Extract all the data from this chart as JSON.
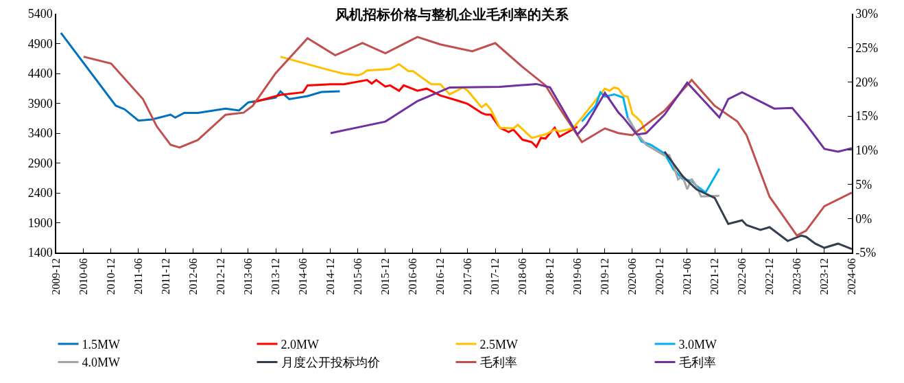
{
  "chart_data": {
    "type": "line",
    "title": "风机招标价格与整机企业毛利率的关系",
    "xlim": [
      "2009-12",
      "2024-06"
    ],
    "xticks": [
      "2009-12",
      "2010-06",
      "2010-12",
      "2011-06",
      "2011-12",
      "2012-06",
      "2012-12",
      "2013-06",
      "2013-12",
      "2014-06",
      "2014-12",
      "2015-06",
      "2015-12",
      "2016-06",
      "2016-12",
      "2017-06",
      "2017-12",
      "2018-06",
      "2018-12",
      "2019-06",
      "2019-12",
      "2020-06",
      "2020-12",
      "2021-06",
      "2021-12",
      "2022-06",
      "2022-12",
      "2023-06",
      "2023-12",
      "2024-06"
    ],
    "ylim": [
      1400,
      5400
    ],
    "yticks": [
      1400,
      1900,
      2400,
      2900,
      3400,
      3900,
      4400,
      4900,
      5400
    ],
    "y2lim": [
      -5,
      30
    ],
    "y2ticks": [
      {
        "value": -5,
        "label": "-5%"
      },
      {
        "value": 0,
        "label": "0%"
      },
      {
        "value": 5,
        "label": "5%"
      },
      {
        "value": 10,
        "label": "10%"
      },
      {
        "value": 15,
        "label": "15%"
      },
      {
        "value": 20,
        "label": "20%"
      },
      {
        "value": 25,
        "label": "25%"
      },
      {
        "value": 30,
        "label": "30%"
      }
    ],
    "grid": false,
    "legend": "bottom",
    "marker": "none",
    "line_style": "solid",
    "series": [
      {
        "name": "1.5MW",
        "color": "#0070c0",
        "x": [
          "2010-01",
          "2011-01",
          "2011-03",
          "2011-06",
          "2011-09",
          "2012-01",
          "2012-02",
          "2012-04",
          "2012-07",
          "2013-01",
          "2013-04",
          "2013-06",
          "2013-08",
          "2013-12",
          "2014-01",
          "2014-03",
          "2014-07",
          "2014-10",
          "2015-02"
        ],
        "values": [
          5080,
          3860,
          3800,
          3610,
          3630,
          3710,
          3660,
          3740,
          3740,
          3810,
          3780,
          3915,
          3940,
          3995,
          4100,
          3970,
          4020,
          4090,
          4100
        ]
      },
      {
        "name": "2.0MW",
        "color": "#ff0000",
        "x": [
          "2013-07",
          "2014-01",
          "2014-06",
          "2014-07",
          "2014-12",
          "2015-03",
          "2015-08",
          "2015-09",
          "2015-10",
          "2015-12",
          "2016-01",
          "2016-03",
          "2016-04",
          "2016-07",
          "2016-09",
          "2016-12",
          "2017-04",
          "2017-06",
          "2017-09",
          "2017-10",
          "2017-11",
          "2018-01",
          "2018-03",
          "2018-04",
          "2018-06",
          "2018-08",
          "2018-09",
          "2018-10",
          "2018-11",
          "2018-12",
          "2019-01",
          "2019-02",
          "2019-04",
          "2019-06",
          "2019-10",
          "2019-12",
          "2020-01"
        ],
        "values": [
          3915,
          4040,
          4085,
          4200,
          4220,
          4220,
          4290,
          4230,
          4290,
          4180,
          4200,
          4110,
          4200,
          4110,
          4145,
          4030,
          3940,
          3890,
          3740,
          3710,
          3710,
          3490,
          3420,
          3460,
          3290,
          3250,
          3170,
          3320,
          3310,
          3400,
          3490,
          3340,
          3420,
          3510,
          null,
          4050,
          3980
        ]
      },
      {
        "name": "2.5MW",
        "color": "#ffc000",
        "x": [
          "2014-01",
          "2014-12",
          "2015-03",
          "2015-06",
          "2015-07",
          "2015-08",
          "2016-01",
          "2016-03",
          "2016-05",
          "2016-06",
          "2016-10",
          "2016-12",
          "2017-02",
          "2017-05",
          "2017-06",
          "2017-09",
          "2017-10",
          "2017-11",
          "2018-01",
          "2018-04",
          "2018-05",
          "2018-08",
          "2018-11",
          "2019-01",
          "2019-02",
          "2019-05",
          "2019-07",
          "2019-12",
          "2020-01",
          "2020-02",
          "2020-03",
          "2020-04",
          "2020-05",
          "2020-06",
          "2020-07",
          "2020-08",
          "2020-09"
        ],
        "values": [
          4680,
          4450,
          4395,
          4370,
          4395,
          4450,
          4475,
          4555,
          4440,
          4440,
          4220,
          4220,
          4050,
          4165,
          4110,
          3835,
          3890,
          3800,
          3490,
          3480,
          3540,
          3320,
          3380,
          3460,
          3430,
          3480,
          3660,
          4145,
          4110,
          4165,
          4145,
          4030,
          4010,
          3720,
          3660,
          3580,
          3400
        ]
      },
      {
        "name": "3.0MW",
        "color": "#00b0f0",
        "x": [
          "2019-07",
          "2019-10",
          "2019-11",
          "2019-12",
          "2020-02",
          "2020-04",
          "2020-05",
          "2020-07",
          "2020-08",
          "2020-10",
          "2021-01",
          "2021-03",
          "2021-05",
          "2021-07",
          "2021-08",
          "2021-10",
          "2022-01"
        ],
        "values": [
          3595,
          3860,
          4085,
          4010,
          4050,
          3995,
          3660,
          3400,
          3260,
          3205,
          3060,
          2795,
          2635,
          2600,
          2520,
          2405,
          2805
        ]
      },
      {
        "name": "4.0MW",
        "color": "#a5a5a5",
        "x": [
          "2020-05",
          "2020-07",
          "2020-09",
          "2021-01",
          "2021-02",
          "2021-03",
          "2021-04",
          "2021-05",
          "2021-06",
          "2021-07",
          "2021-08",
          "2021-09",
          "2022-01"
        ],
        "values": [
          3660,
          3400,
          3205,
          3025,
          3035,
          2865,
          2625,
          2680,
          2460,
          2635,
          2510,
          2340,
          2350
        ]
      },
      {
        "name": "月度公开投标均价",
        "color": "#333f50",
        "x": [
          "2021-01",
          "2021-05",
          "2021-08",
          "2021-12",
          "2022-03",
          "2022-06",
          "2022-07",
          "2022-10",
          "2022-12",
          "2023-04",
          "2023-07",
          "2023-08",
          "2023-10",
          "2023-12",
          "2024-03",
          "2024-06"
        ],
        "values": [
          3090,
          2680,
          2460,
          2315,
          1880,
          1940,
          1860,
          1780,
          1825,
          1595,
          1685,
          1665,
          1550,
          1480,
          1550,
          1460
        ]
      },
      {
        "name": "毛利率",
        "color": "#c0504d",
        "axis": "y2",
        "x": [
          "2010-06",
          "2010-12",
          "2011-07",
          "2011-10",
          "2012-01",
          "2012-03",
          "2012-07",
          "2013-01",
          "2013-05",
          "2013-07",
          "2013-12",
          "2014-07",
          "2015-01",
          "2015-07",
          "2015-12",
          "2016-07",
          "2016-12",
          "2017-07",
          "2017-12",
          "2018-06",
          "2018-11",
          "2019-02",
          "2019-07",
          "2019-12",
          "2020-03",
          "2020-06",
          "2021-01",
          "2021-07",
          "2021-12",
          "2022-05",
          "2022-07",
          "2022-12",
          "2023-06",
          "2023-08",
          "2023-12",
          "2024-06"
        ],
        "values": [
          23.7,
          22.7,
          17.5,
          13.5,
          10.8,
          10.4,
          11.5,
          15.2,
          15.5,
          16.5,
          21.3,
          26.4,
          23.9,
          25.7,
          24.2,
          26.6,
          25.5,
          24.5,
          25.7,
          22.2,
          19.5,
          16.2,
          11.2,
          13.2,
          12.5,
          12.2,
          15.8,
          20.3,
          16.5,
          14.2,
          12.2,
          3.2,
          -2.5,
          -1.8,
          1.8,
          3.8
        ]
      },
      {
        "name": "毛利率",
        "color": "#7030a0",
        "axis": "y2",
        "x": [
          "2014-12",
          "2015-12",
          "2016-07",
          "2017-02",
          "2018-01",
          "2018-09",
          "2018-12",
          "2019-03",
          "2019-06",
          "2019-08",
          "2019-12",
          "2020-03",
          "2020-04",
          "2020-07",
          "2020-09",
          "2021-01",
          "2021-06",
          "2022-01",
          "2022-03",
          "2022-06",
          "2023-01",
          "2023-05",
          "2023-08",
          "2023-12",
          "2024-03",
          "2024-06"
        ],
        "values": [
          12.5,
          14.2,
          17.2,
          19.2,
          19.3,
          19.7,
          19.2,
          15.8,
          12.3,
          13.8,
          18.4,
          15.5,
          14.8,
          12.3,
          12.5,
          15.2,
          19.9,
          14.8,
          17.5,
          18.5,
          16.1,
          16.2,
          13.8,
          10.2,
          9.8,
          10.3
        ]
      }
    ]
  }
}
